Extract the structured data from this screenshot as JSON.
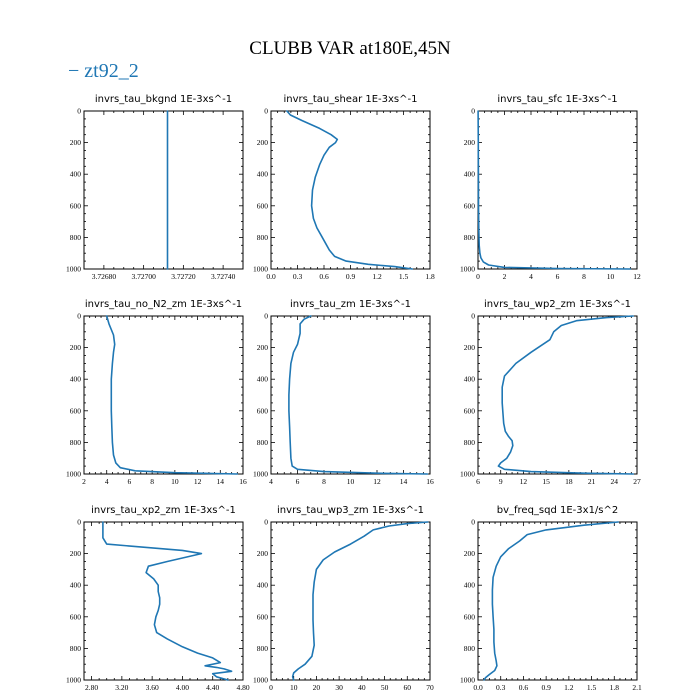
{
  "title": "CLUBB VAR at180E,45N",
  "legend": {
    "label": "zt92_2",
    "color": "#1f77b4"
  },
  "chart_data": [
    {
      "type": "line",
      "title": "invrs_tau_bkgnd   1E-3xs^-1",
      "xlim": [
        3.7267,
        3.7275
      ],
      "xticks": [
        3.7268,
        3.727,
        3.7272,
        3.7274
      ],
      "xtick_labels": [
        "3.72680",
        "3.72700",
        "3.72720",
        "3.72740"
      ],
      "ylim": [
        1000,
        0
      ],
      "yticks": [
        0,
        200,
        400,
        600,
        800,
        1000
      ],
      "series": [
        {
          "x": [
            3.72712,
            3.72712
          ],
          "y": [
            0,
            1000
          ]
        }
      ]
    },
    {
      "type": "line",
      "title": "invrs_tau_shear   1E-3xs^-1",
      "xlim": [
        0,
        1.8
      ],
      "xticks": [
        0,
        0.3,
        0.6,
        0.9,
        1.2,
        1.5,
        1.8
      ],
      "xtick_labels": [
        "0.0",
        "0.3",
        "0.6",
        "0.9",
        "1.2",
        "1.5",
        "1.8"
      ],
      "ylim": [
        1000,
        0
      ],
      "yticks": [
        0,
        200,
        400,
        600,
        800,
        1000
      ],
      "series": [
        {
          "x": [
            0.18,
            0.22,
            0.35,
            0.55,
            0.68,
            0.75,
            0.73,
            0.66,
            0.6,
            0.55,
            0.5,
            0.47,
            0.46,
            0.48,
            0.52,
            0.57,
            0.62,
            0.66,
            0.72,
            0.85,
            1.1,
            1.4,
            1.6
          ],
          "y": [
            0,
            25,
            60,
            110,
            150,
            180,
            200,
            230,
            280,
            340,
            420,
            500,
            600,
            680,
            740,
            790,
            840,
            880,
            920,
            950,
            970,
            985,
            1000
          ]
        }
      ]
    },
    {
      "type": "line",
      "title": "invrs_tau_sfc   1E-3xs^-1",
      "xlim": [
        0,
        12
      ],
      "xticks": [
        0,
        2,
        4,
        6,
        8,
        10,
        12
      ],
      "xtick_labels": [
        "0",
        "2",
        "4",
        "6",
        "8",
        "10",
        "12"
      ],
      "ylim": [
        1000,
        0
      ],
      "yticks": [
        0,
        200,
        400,
        600,
        800,
        1000
      ],
      "series": [
        {
          "x": [
            0.01,
            0.02,
            0.03,
            0.04,
            0.06,
            0.09,
            0.14,
            0.22,
            0.4,
            0.8,
            2.0,
            6.0,
            11.5
          ],
          "y": [
            0,
            200,
            400,
            600,
            750,
            850,
            900,
            930,
            955,
            975,
            990,
            997,
            1000
          ]
        }
      ]
    },
    {
      "type": "line",
      "title": "invrs_tau_no_N2_zm   1E-3xs^-1",
      "xlim": [
        2,
        16
      ],
      "xticks": [
        2,
        4,
        6,
        8,
        10,
        12,
        14,
        16
      ],
      "xtick_labels": [
        "2",
        "4",
        "6",
        "8",
        "10",
        "12",
        "14",
        "16"
      ],
      "ylim": [
        1000,
        0
      ],
      "yticks": [
        0,
        200,
        400,
        600,
        800,
        1000
      ],
      "series": [
        {
          "x": [
            4.0,
            4.2,
            4.6,
            4.7,
            4.6,
            4.5,
            4.4,
            4.4,
            4.4,
            4.45,
            4.5,
            4.6,
            4.8,
            5.2,
            6.5,
            10.0,
            15.5
          ],
          "y": [
            0,
            50,
            120,
            180,
            230,
            300,
            400,
            500,
            600,
            700,
            800,
            880,
            930,
            960,
            980,
            992,
            1000
          ]
        }
      ]
    },
    {
      "type": "line",
      "title": "invrs_tau_zm   1E-3xs^-1",
      "xlim": [
        4,
        16
      ],
      "xticks": [
        4,
        6,
        8,
        10,
        12,
        14,
        16
      ],
      "xtick_labels": [
        "4",
        "6",
        "8",
        "10",
        "12",
        "14",
        "16"
      ],
      "ylim": [
        1000,
        0
      ],
      "yticks": [
        0,
        200,
        400,
        600,
        800,
        1000
      ],
      "series": [
        {
          "x": [
            7.0,
            6.5,
            6.2,
            6.2,
            6.0,
            5.7,
            5.5,
            5.4,
            5.35,
            5.35,
            5.4,
            5.45,
            5.5,
            5.6,
            6.0,
            8.0,
            12.0,
            15.8
          ],
          "y": [
            0,
            20,
            50,
            110,
            180,
            230,
            300,
            400,
            500,
            600,
            700,
            800,
            900,
            950,
            970,
            985,
            995,
            1000
          ]
        }
      ]
    },
    {
      "type": "line",
      "title": "invrs_tau_wp2_zm   1E-3xs^-1",
      "xlim": [
        6,
        27
      ],
      "xticks": [
        6,
        9,
        12,
        15,
        18,
        21,
        24,
        27
      ],
      "xtick_labels": [
        "6",
        "9",
        "12",
        "15",
        "18",
        "21",
        "24",
        "27"
      ],
      "ylim": [
        1000,
        0
      ],
      "yticks": [
        0,
        200,
        400,
        600,
        800,
        1000
      ],
      "series": [
        {
          "x": [
            26.5,
            23.0,
            19.0,
            17.0,
            16.0,
            15.5,
            13.0,
            11.0,
            9.5,
            9.2,
            9.2,
            9.3,
            9.4,
            9.6,
            10.0,
            10.5,
            10.6,
            10.3,
            9.8,
            9.0,
            8.7,
            9.5,
            13.0,
            20.0,
            26.5
          ],
          "y": [
            0,
            10,
            30,
            60,
            100,
            150,
            230,
            300,
            380,
            450,
            550,
            620,
            680,
            730,
            760,
            790,
            820,
            860,
            900,
            930,
            950,
            970,
            985,
            995,
            1000
          ]
        }
      ]
    },
    {
      "type": "line",
      "title": "invrs_tau_xp2_zm   1E-3xs^-1",
      "xlim": [
        2.7,
        4.8
      ],
      "xticks": [
        2.8,
        3.2,
        3.6,
        4.0,
        4.4,
        4.8
      ],
      "xtick_labels": [
        "2.80",
        "3.20",
        "3.60",
        "4.00",
        "4.40",
        "4.80"
      ],
      "ylim": [
        1000,
        0
      ],
      "yticks": [
        0,
        200,
        400,
        600,
        800,
        1000
      ],
      "series": [
        {
          "x": [
            2.95,
            2.95,
            2.95,
            3.0,
            4.0,
            4.25,
            3.8,
            3.55,
            3.52,
            3.62,
            3.68,
            3.68,
            3.7,
            3.7,
            3.68,
            3.65,
            3.63,
            3.66,
            3.8,
            4.0,
            4.2,
            4.4,
            4.5,
            4.3,
            4.45,
            4.55,
            4.65,
            4.4,
            4.45,
            4.6
          ],
          "y": [
            0,
            50,
            100,
            140,
            180,
            200,
            250,
            280,
            320,
            360,
            400,
            440,
            480,
            520,
            560,
            600,
            650,
            700,
            740,
            790,
            830,
            860,
            890,
            910,
            920,
            930,
            945,
            960,
            980,
            1000
          ]
        }
      ]
    },
    {
      "type": "line",
      "title": "invrs_tau_wp3_zm   1E-3xs^-1",
      "xlim": [
        0,
        70
      ],
      "xticks": [
        0,
        10,
        20,
        30,
        40,
        50,
        60,
        70
      ],
      "xtick_labels": [
        "0",
        "10",
        "20",
        "30",
        "40",
        "50",
        "60",
        "70"
      ],
      "ylim": [
        1000,
        0
      ],
      "yticks": [
        0,
        200,
        400,
        600,
        800,
        1000
      ],
      "series": [
        {
          "x": [
            69.0,
            60.0,
            52.0,
            45.0,
            41.0,
            35.0,
            28.0,
            23.0,
            20.0,
            19.0,
            18.5,
            18.5,
            18.5,
            18.7,
            19.0,
            18.0,
            15.0,
            12.0,
            10.0,
            9.5,
            10.0
          ],
          "y": [
            0,
            10,
            25,
            50,
            90,
            140,
            190,
            240,
            300,
            380,
            460,
            540,
            620,
            700,
            780,
            850,
            900,
            930,
            955,
            980,
            1000
          ]
        }
      ]
    },
    {
      "type": "line",
      "title": "bv_freq_sqd   1E-3x1/s^2",
      "xlim": [
        0,
        2.1
      ],
      "xticks": [
        0,
        0.3,
        0.6,
        0.9,
        1.2,
        1.5,
        1.8,
        2.1
      ],
      "xtick_labels": [
        "0.0",
        "0.3",
        "0.6",
        "0.9",
        "1.2",
        "1.5",
        "1.8",
        "2.1"
      ],
      "ylim": [
        1000,
        0
      ],
      "yticks": [
        0,
        200,
        400,
        600,
        800,
        1000
      ],
      "series": [
        {
          "x": [
            1.85,
            1.4,
            0.9,
            0.65,
            0.55,
            0.4,
            0.3,
            0.24,
            0.2,
            0.19,
            0.19,
            0.2,
            0.21,
            0.21,
            0.22,
            0.24,
            0.25,
            0.22,
            0.15,
            0.1,
            0.08
          ],
          "y": [
            0,
            20,
            50,
            80,
            120,
            170,
            220,
            280,
            350,
            430,
            520,
            600,
            680,
            760,
            830,
            880,
            910,
            940,
            965,
            985,
            1000
          ]
        }
      ]
    }
  ]
}
